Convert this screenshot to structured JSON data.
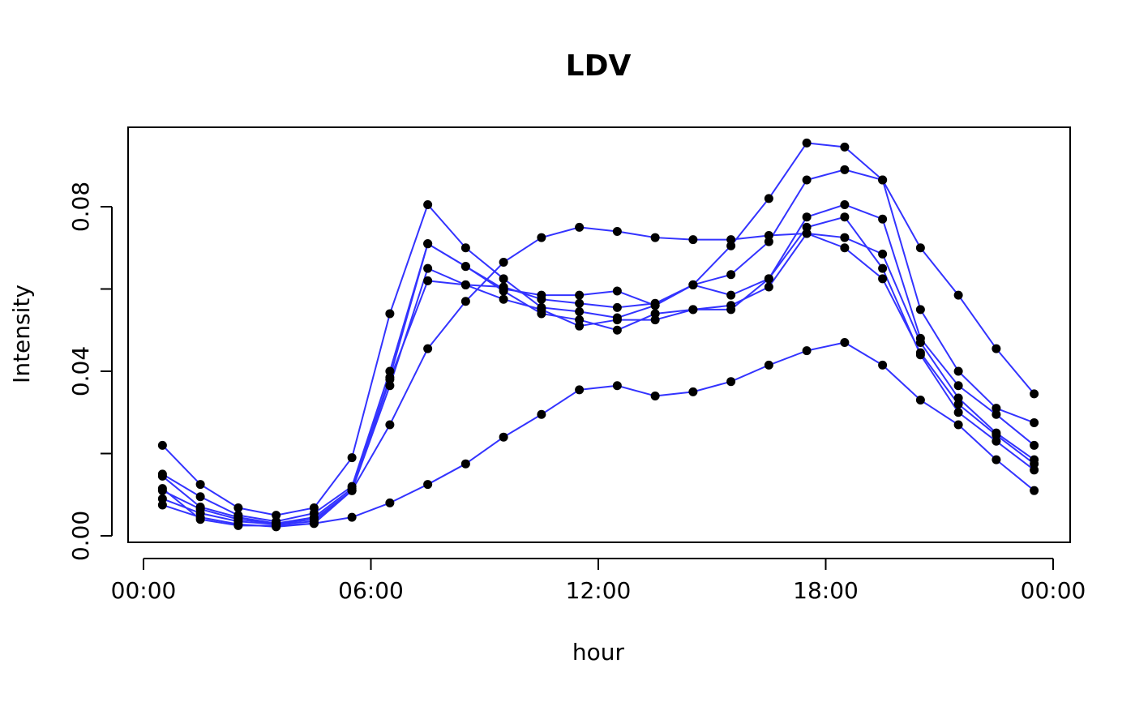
{
  "chart_data": {
    "type": "line",
    "title": "LDV",
    "xlabel": "hour",
    "ylabel": "Intensity",
    "xlim": [
      -0.5,
      24.0
    ],
    "ylim": [
      0.0,
      0.1
    ],
    "x_ticks": [
      {
        "value": 0,
        "label": "00:00"
      },
      {
        "value": 6,
        "label": "06:00"
      },
      {
        "value": 12,
        "label": "12:00"
      },
      {
        "value": 18,
        "label": "18:00"
      },
      {
        "value": 24,
        "label": "00:00"
      }
    ],
    "y_ticks": [
      {
        "value": 0.0,
        "label": "0.00",
        "show_label": true
      },
      {
        "value": 0.02,
        "label": "",
        "show_label": false
      },
      {
        "value": 0.04,
        "label": "0.04",
        "show_label": true
      },
      {
        "value": 0.06,
        "label": "",
        "show_label": false
      },
      {
        "value": 0.08,
        "label": "0.08",
        "show_label": true
      }
    ],
    "grid": false,
    "line_color": "#3333ff",
    "point_color": "#000000",
    "x": [
      0.5,
      1.5,
      2.5,
      3.5,
      4.5,
      5.5,
      6.5,
      7.5,
      8.5,
      9.5,
      10.5,
      11.5,
      12.5,
      13.5,
      14.5,
      15.5,
      16.5,
      17.5,
      18.5,
      19.5,
      20.5,
      21.5,
      22.5,
      23.5
    ],
    "series": [
      {
        "values": [
          0.022,
          0.0125,
          0.0068,
          0.005,
          0.0068,
          0.019,
          0.054,
          0.0805,
          0.07,
          0.0625,
          0.0555,
          0.0545,
          0.053,
          0.056,
          0.061,
          0.0705,
          0.082,
          0.0955,
          0.0945,
          0.0865,
          0.07,
          0.0585,
          0.0455,
          0.0345
        ]
      },
      {
        "values": [
          0.015,
          0.0095,
          0.005,
          0.0035,
          0.0055,
          0.012,
          0.04,
          0.071,
          0.0655,
          0.06,
          0.0585,
          0.0585,
          0.0595,
          0.056,
          0.061,
          0.0635,
          0.0715,
          0.0865,
          0.089,
          0.0865,
          0.055,
          0.04,
          0.031,
          0.0275
        ]
      },
      {
        "values": [
          0.0145,
          0.007,
          0.0045,
          0.003,
          0.0045,
          0.0115,
          0.0385,
          0.071,
          0.0655,
          0.0595,
          0.054,
          0.0525,
          0.05,
          0.054,
          0.055,
          0.055,
          0.0625,
          0.0775,
          0.0805,
          0.077,
          0.048,
          0.0365,
          0.0295,
          0.022
        ]
      },
      {
        "values": [
          0.011,
          0.0065,
          0.004,
          0.003,
          0.004,
          0.011,
          0.0365,
          0.065,
          0.061,
          0.0575,
          0.055,
          0.051,
          0.0525,
          0.0525,
          0.055,
          0.056,
          0.0605,
          0.0735,
          0.0725,
          0.0685,
          0.047,
          0.0335,
          0.025,
          0.0185
        ]
      },
      {
        "values": [
          0.009,
          0.0055,
          0.0035,
          0.0028,
          0.0035,
          0.011,
          0.038,
          0.062,
          0.061,
          0.0605,
          0.0575,
          0.0565,
          0.0555,
          0.0565,
          0.061,
          0.0585,
          0.0625,
          0.075,
          0.0775,
          0.065,
          0.044,
          0.03,
          0.023,
          0.016
        ]
      },
      {
        "values": [
          0.0075,
          0.0045,
          0.0028,
          0.0022,
          0.003,
          0.011,
          0.027,
          0.0455,
          0.057,
          0.0665,
          0.0725,
          0.075,
          0.074,
          0.0725,
          0.072,
          0.072,
          0.073,
          0.0735,
          0.07,
          0.0625,
          0.0445,
          0.032,
          0.0245,
          0.0175
        ]
      },
      {
        "values": [
          0.0115,
          0.004,
          0.0025,
          0.0025,
          0.003,
          0.0045,
          0.008,
          0.0125,
          0.0175,
          0.024,
          0.0295,
          0.0355,
          0.0365,
          0.034,
          0.035,
          0.0375,
          0.0415,
          0.045,
          0.047,
          0.0415,
          0.033,
          0.027,
          0.0185,
          0.011
        ]
      }
    ]
  }
}
